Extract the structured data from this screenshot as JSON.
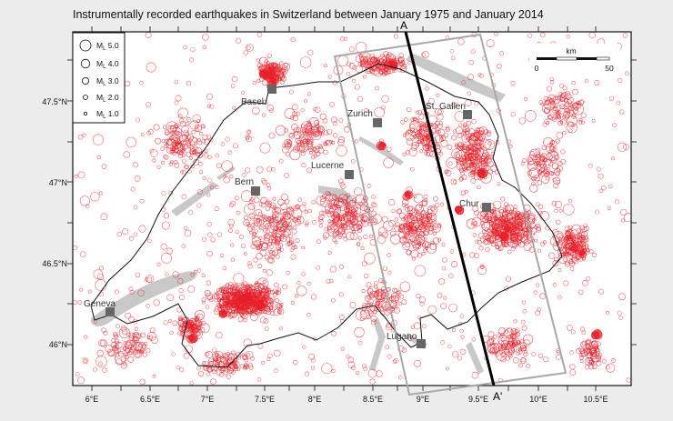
{
  "title": "Instrumentally recorded earthquakes in Switzerland between January 1975 and January 2014",
  "colors": {
    "quake": "#e8202a",
    "border": "#111111",
    "lake": "#c8c8c8",
    "city": "#666666",
    "section_box": "#a8a8a8",
    "profile_line": "#000000"
  },
  "axes": {
    "x_ticks": [
      "6°E",
      "6.5°E",
      "7°E",
      "7.5°E",
      "8°E",
      "8.5°E",
      "9°E",
      "9.5°E",
      "10°E",
      "10.5°E"
    ],
    "y_ticks": [
      "47.5°N",
      "47°N",
      "46.5°N",
      "46°N"
    ]
  },
  "legend": {
    "items": [
      {
        "label": "ML 5.0",
        "mag": 5.0
      },
      {
        "label": "ML 4.0",
        "mag": 4.0
      },
      {
        "label": "ML 3.0",
        "mag": 3.0
      },
      {
        "label": "ML 2.0",
        "mag": 2.0
      },
      {
        "label": "ML 1.0",
        "mag": 1.0
      }
    ]
  },
  "scalebar": {
    "unit": "km",
    "start": "0",
    "end": "50"
  },
  "cities": [
    {
      "name": "Basel",
      "lon": 7.59,
      "lat": 47.56
    },
    {
      "name": "Zurich",
      "lon": 8.55,
      "lat": 47.37
    },
    {
      "name": "St. Gallen",
      "lon": 9.37,
      "lat": 47.42
    },
    {
      "name": "Lucerne",
      "lon": 8.31,
      "lat": 47.05
    },
    {
      "name": "Bern",
      "lon": 7.45,
      "lat": 46.95
    },
    {
      "name": "Chur",
      "lon": 9.53,
      "lat": 46.85
    },
    {
      "name": "Geneva",
      "lon": 6.15,
      "lat": 46.2
    },
    {
      "name": "Lugano",
      "lon": 8.95,
      "lat": 46.0
    }
  ],
  "profile": {
    "start_label": "A",
    "end_label": "A'"
  }
}
